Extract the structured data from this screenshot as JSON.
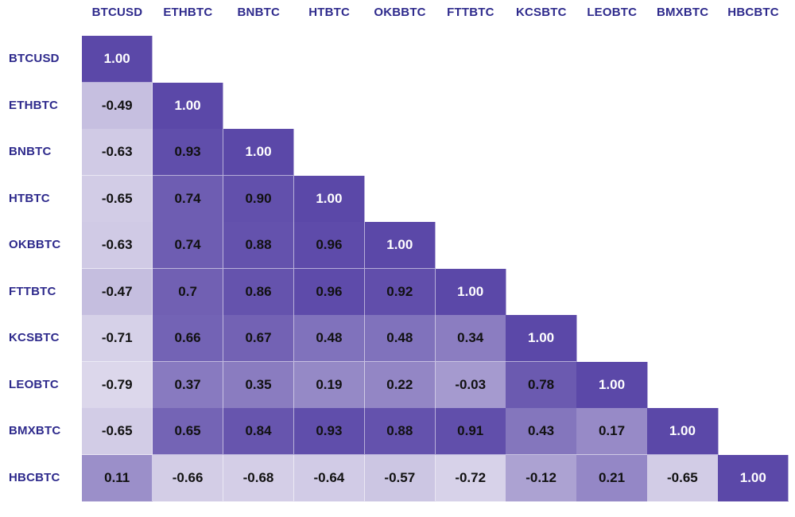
{
  "chart_data": {
    "type": "heatmap",
    "title": "",
    "xlabel": "",
    "ylabel": "",
    "labels": [
      "BTCUSD",
      "ETHBTC",
      "BNBTC",
      "HTBTC",
      "OKBBTC",
      "FTTBTC",
      "KCSBTC",
      "LEOBTC",
      "BMXBTC",
      "HBCBTC"
    ],
    "rows": [
      [
        "1.00"
      ],
      [
        "-0.49",
        "1.00"
      ],
      [
        "-0.63",
        "0.93",
        "1.00"
      ],
      [
        "-0.65",
        "0.74",
        "0.90",
        "1.00"
      ],
      [
        "-0.63",
        "0.74",
        "0.88",
        "0.96",
        "1.00"
      ],
      [
        "-0.47",
        "0.7",
        "0.86",
        "0.96",
        "0.92",
        "1.00"
      ],
      [
        "-0.71",
        "0.66",
        "0.67",
        "0.48",
        "0.48",
        "0.34",
        "1.00"
      ],
      [
        "-0.79",
        "0.37",
        "0.35",
        "0.19",
        "0.22",
        "-0.03",
        "0.78",
        "1.00"
      ],
      [
        "-0.65",
        "0.65",
        "0.84",
        "0.93",
        "0.88",
        "0.91",
        "0.43",
        "0.17",
        "1.00"
      ],
      [
        "0.11",
        "-0.66",
        "-0.68",
        "-0.64",
        "-0.57",
        "-0.72",
        "-0.12",
        "0.21",
        "-0.65",
        "1.00"
      ]
    ],
    "value_range": [
      -1,
      1
    ],
    "color_low": "#ebe8f3",
    "color_high": "#5b48a8",
    "label_color": "#2e2a8c",
    "diagonal_text_color": "#ffffff",
    "cell_text_color": "#111111"
  }
}
